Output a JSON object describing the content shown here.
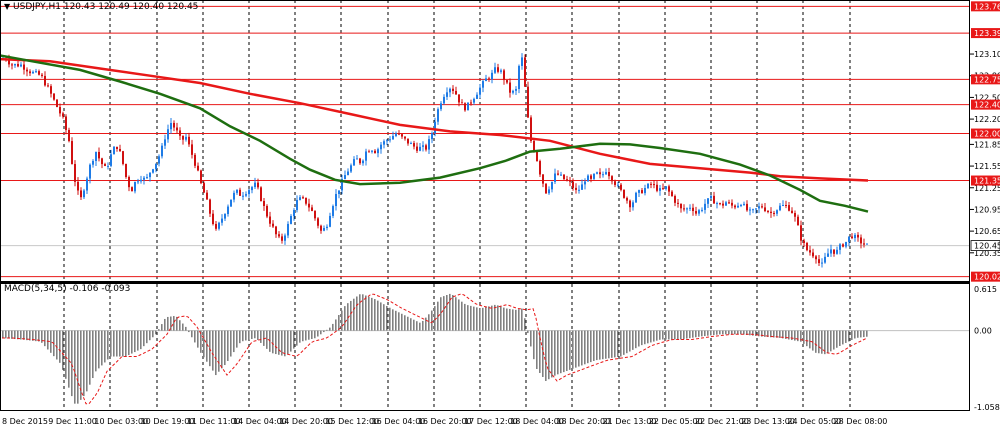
{
  "header": {
    "arrow": "▼",
    "title": "USDJPY,H1  120.43 120.49 120.40 120.45"
  },
  "macd_header": "MACD(5,34,5) -0.106 -0.093",
  "colors": {
    "background": "#ffffff",
    "plot_background": "#fdf7f7",
    "bull": "#1e7be6",
    "bear": "#d01010",
    "ma_fast": "#e81818",
    "ma_slow": "#1e6e10",
    "hline": "#e81818",
    "macd_hist": "#808080",
    "macd_signal": "#e81818",
    "grid": "#000000"
  },
  "chart_data": [
    {
      "type": "candlestick",
      "title": "USDJPY,H1",
      "ylim": [
        119.96,
        123.82
      ],
      "y_ticks": [
        123.1,
        122.8,
        122.5,
        122.2,
        121.85,
        121.55,
        121.25,
        120.95,
        120.65,
        120.35
      ],
      "price_lines": [
        {
          "label": "123.76",
          "value": 123.76
        },
        {
          "label": "123.39",
          "value": 123.39
        },
        {
          "label": "122.75",
          "value": 122.75
        },
        {
          "label": "122.40",
          "value": 122.4
        },
        {
          "label": "122.00",
          "value": 122.0
        },
        {
          "label": "121.35",
          "value": 121.35
        },
        {
          "label": "120.02",
          "value": 120.02
        }
      ],
      "current_price": {
        "label": "120.45",
        "value": 120.45
      },
      "x_labels": [
        "8 Dec 2015",
        "9 Dec 11:00",
        "10 Dec 03:00",
        "10 Dec 19:00",
        "11 Dec 11:00",
        "14 Dec 04:00",
        "14 Dec 20:00",
        "15 Dec 12:00",
        "16 Dec 04:00",
        "16 Dec 20:00",
        "17 Dec 12:00",
        "18 Dec 04:00",
        "18 Dec 20:00",
        "21 Dec 13:00",
        "22 Dec 05:00",
        "22 Dec 21:00",
        "23 Dec 13:00",
        "24 Dec 05:00",
        "28 Dec 08:00"
      ],
      "close_path": [
        [
          0,
          123.02
        ],
        [
          5,
          123.05
        ],
        [
          10,
          122.95
        ],
        [
          20,
          122.95
        ],
        [
          30,
          122.85
        ],
        [
          40,
          122.8
        ],
        [
          48,
          122.6
        ],
        [
          55,
          122.4
        ],
        [
          62,
          122.2
        ],
        [
          68,
          121.9
        ],
        [
          72,
          121.5
        ],
        [
          76,
          121.2
        ],
        [
          80,
          121.1
        ],
        [
          85,
          121.35
        ],
        [
          90,
          121.6
        ],
        [
          95,
          121.75
        ],
        [
          100,
          121.6
        ],
        [
          105,
          121.5
        ],
        [
          110,
          121.7
        ],
        [
          115,
          121.85
        ],
        [
          120,
          121.7
        ],
        [
          125,
          121.4
        ],
        [
          130,
          121.2
        ],
        [
          135,
          121.35
        ],
        [
          140,
          121.4
        ],
        [
          145,
          121.35
        ],
        [
          150,
          121.5
        ],
        [
          155,
          121.6
        ],
        [
          160,
          121.75
        ],
        [
          165,
          122.0
        ],
        [
          170,
          122.15
        ],
        [
          175,
          122.05
        ],
        [
          180,
          121.9
        ],
        [
          185,
          121.95
        ],
        [
          190,
          121.75
        ],
        [
          195,
          121.55
        ],
        [
          200,
          121.3
        ],
        [
          205,
          121.1
        ],
        [
          210,
          120.85
        ],
        [
          215,
          120.65
        ],
        [
          220,
          120.8
        ],
        [
          225,
          120.95
        ],
        [
          230,
          121.1
        ],
        [
          235,
          121.2
        ],
        [
          240,
          121.15
        ],
        [
          245,
          121.2
        ],
        [
          250,
          121.25
        ],
        [
          255,
          121.3
        ],
        [
          260,
          121.1
        ],
        [
          265,
          120.9
        ],
        [
          270,
          120.75
        ],
        [
          275,
          120.6
        ],
        [
          280,
          120.5
        ],
        [
          285,
          120.65
        ],
        [
          290,
          120.85
        ],
        [
          295,
          121.05
        ],
        [
          300,
          121.1
        ],
        [
          305,
          121.05
        ],
        [
          310,
          120.95
        ],
        [
          315,
          120.8
        ],
        [
          320,
          120.65
        ],
        [
          325,
          120.7
        ],
        [
          330,
          120.95
        ],
        [
          335,
          121.15
        ],
        [
          340,
          121.3
        ],
        [
          345,
          121.45
        ],
        [
          350,
          121.55
        ],
        [
          355,
          121.65
        ],
        [
          360,
          121.6
        ],
        [
          365,
          121.75
        ],
        [
          370,
          121.8
        ],
        [
          375,
          121.75
        ],
        [
          380,
          121.85
        ],
        [
          385,
          121.9
        ],
        [
          390,
          121.95
        ],
        [
          395,
          122.0
        ],
        [
          400,
          121.95
        ],
        [
          405,
          121.9
        ],
        [
          410,
          121.85
        ],
        [
          415,
          121.8
        ],
        [
          420,
          121.8
        ],
        [
          425,
          121.8
        ],
        [
          430,
          121.95
        ],
        [
          435,
          122.25
        ],
        [
          440,
          122.45
        ],
        [
          445,
          122.6
        ],
        [
          450,
          122.65
        ],
        [
          455,
          122.55
        ],
        [
          460,
          122.4
        ],
        [
          465,
          122.35
        ],
        [
          470,
          122.45
        ],
        [
          475,
          122.55
        ],
        [
          480,
          122.65
        ],
        [
          485,
          122.75
        ],
        [
          490,
          122.8
        ],
        [
          495,
          122.9
        ],
        [
          500,
          122.85
        ],
        [
          505,
          122.7
        ],
        [
          510,
          122.55
        ],
        [
          515,
          122.6
        ],
        [
          520,
          123.15
        ],
        [
          523,
          122.8
        ],
        [
          526,
          122.3
        ],
        [
          530,
          121.9
        ],
        [
          535,
          121.7
        ],
        [
          540,
          121.4
        ],
        [
          545,
          121.2
        ],
        [
          550,
          121.3
        ],
        [
          555,
          121.45
        ],
        [
          560,
          121.4
        ],
        [
          565,
          121.35
        ],
        [
          570,
          121.3
        ],
        [
          575,
          121.2
        ],
        [
          580,
          121.25
        ],
        [
          585,
          121.4
        ],
        [
          590,
          121.35
        ],
        [
          595,
          121.45
        ],
        [
          600,
          121.4
        ],
        [
          605,
          121.5
        ],
        [
          610,
          121.4
        ],
        [
          615,
          121.3
        ],
        [
          620,
          121.2
        ],
        [
          625,
          121.1
        ],
        [
          630,
          121.0
        ],
        [
          635,
          121.15
        ],
        [
          640,
          121.2
        ],
        [
          645,
          121.25
        ],
        [
          650,
          121.3
        ],
        [
          655,
          121.25
        ],
        [
          660,
          121.2
        ],
        [
          665,
          121.25
        ],
        [
          670,
          121.15
        ],
        [
          675,
          121.05
        ],
        [
          680,
          120.95
        ],
        [
          685,
          120.95
        ],
        [
          690,
          121.0
        ],
        [
          695,
          120.9
        ],
        [
          700,
          120.95
        ],
        [
          705,
          121.05
        ],
        [
          710,
          121.1
        ],
        [
          715,
          121.05
        ],
        [
          720,
          121.0
        ],
        [
          725,
          121.05
        ],
        [
          730,
          121.0
        ],
        [
          735,
          121.0
        ],
        [
          740,
          121.05
        ],
        [
          745,
          120.95
        ],
        [
          750,
          120.9
        ],
        [
          755,
          120.95
        ],
        [
          760,
          121.0
        ],
        [
          765,
          120.95
        ],
        [
          770,
          120.9
        ],
        [
          775,
          120.95
        ],
        [
          780,
          121.0
        ],
        [
          785,
          121.0
        ],
        [
          790,
          120.95
        ],
        [
          795,
          120.8
        ],
        [
          800,
          120.55
        ],
        [
          805,
          120.4
        ],
        [
          810,
          120.35
        ],
        [
          815,
          120.3
        ],
        [
          820,
          120.15
        ],
        [
          825,
          120.3
        ],
        [
          830,
          120.4
        ],
        [
          835,
          120.35
        ],
        [
          840,
          120.45
        ],
        [
          845,
          120.5
        ],
        [
          850,
          120.6
        ],
        [
          855,
          120.55
        ],
        [
          860,
          120.5
        ],
        [
          865,
          120.45
        ],
        [
          868,
          120.45
        ]
      ],
      "ma_fast_path": [
        [
          0,
          123.03
        ],
        [
          50,
          123.0
        ],
        [
          100,
          122.9
        ],
        [
          150,
          122.8
        ],
        [
          200,
          122.7
        ],
        [
          250,
          122.55
        ],
        [
          300,
          122.42
        ],
        [
          350,
          122.27
        ],
        [
          400,
          122.12
        ],
        [
          450,
          122.03
        ],
        [
          500,
          121.98
        ],
        [
          550,
          121.9
        ],
        [
          600,
          121.72
        ],
        [
          650,
          121.58
        ],
        [
          700,
          121.52
        ],
        [
          750,
          121.46
        ],
        [
          780,
          121.41
        ],
        [
          820,
          121.38
        ],
        [
          868,
          121.35
        ]
      ],
      "ma_slow_path": [
        [
          0,
          123.08
        ],
        [
          40,
          122.98
        ],
        [
          80,
          122.88
        ],
        [
          120,
          122.72
        ],
        [
          160,
          122.55
        ],
        [
          200,
          122.35
        ],
        [
          230,
          122.1
        ],
        [
          260,
          121.9
        ],
        [
          290,
          121.65
        ],
        [
          310,
          121.5
        ],
        [
          335,
          121.36
        ],
        [
          360,
          121.3
        ],
        [
          400,
          121.32
        ],
        [
          440,
          121.39
        ],
        [
          480,
          121.52
        ],
        [
          505,
          121.62
        ],
        [
          530,
          121.75
        ],
        [
          560,
          121.79
        ],
        [
          600,
          121.86
        ],
        [
          630,
          121.85
        ],
        [
          660,
          121.8
        ],
        [
          700,
          121.72
        ],
        [
          740,
          121.57
        ],
        [
          770,
          121.42
        ],
        [
          800,
          121.22
        ],
        [
          820,
          121.07
        ],
        [
          845,
          121.0
        ],
        [
          868,
          120.92
        ]
      ]
    },
    {
      "type": "bar",
      "title": "MACD(5,34,5) -0.106 -0.093",
      "ylim": [
        -1.058,
        0.615
      ],
      "y_ticks": [
        0.615,
        0.0,
        -1.058
      ],
      "hist_path": [
        [
          0,
          -0.1
        ],
        [
          20,
          -0.12
        ],
        [
          40,
          -0.15
        ],
        [
          60,
          -0.45
        ],
        [
          70,
          -0.85
        ],
        [
          75,
          -1.02
        ],
        [
          85,
          -0.85
        ],
        [
          95,
          -0.55
        ],
        [
          110,
          -0.35
        ],
        [
          125,
          -0.35
        ],
        [
          140,
          -0.25
        ],
        [
          155,
          -0.05
        ],
        [
          165,
          0.18
        ],
        [
          175,
          0.2
        ],
        [
          185,
          0.05
        ],
        [
          200,
          -0.3
        ],
        [
          215,
          -0.6
        ],
        [
          225,
          -0.45
        ],
        [
          240,
          -0.15
        ],
        [
          255,
          -0.1
        ],
        [
          270,
          -0.3
        ],
        [
          285,
          -0.35
        ],
        [
          300,
          -0.15
        ],
        [
          315,
          -0.1
        ],
        [
          330,
          0.05
        ],
        [
          345,
          0.35
        ],
        [
          360,
          0.5
        ],
        [
          375,
          0.42
        ],
        [
          390,
          0.3
        ],
        [
          405,
          0.2
        ],
        [
          420,
          0.1
        ],
        [
          430,
          0.25
        ],
        [
          440,
          0.45
        ],
        [
          450,
          0.5
        ],
        [
          465,
          0.35
        ],
        [
          480,
          0.3
        ],
        [
          495,
          0.35
        ],
        [
          505,
          0.3
        ],
        [
          515,
          0.28
        ],
        [
          522,
          0.3
        ],
        [
          528,
          -0.1
        ],
        [
          535,
          -0.5
        ],
        [
          545,
          -0.68
        ],
        [
          555,
          -0.6
        ],
        [
          575,
          -0.5
        ],
        [
          595,
          -0.4
        ],
        [
          620,
          -0.35
        ],
        [
          640,
          -0.2
        ],
        [
          660,
          -0.12
        ],
        [
          680,
          -0.12
        ],
        [
          700,
          -0.08
        ],
        [
          720,
          -0.05
        ],
        [
          740,
          -0.05
        ],
        [
          760,
          -0.08
        ],
        [
          780,
          -0.1
        ],
        [
          800,
          -0.15
        ],
        [
          815,
          -0.3
        ],
        [
          825,
          -0.32
        ],
        [
          840,
          -0.2
        ],
        [
          855,
          -0.1
        ],
        [
          868,
          -0.08
        ]
      ]
    }
  ]
}
